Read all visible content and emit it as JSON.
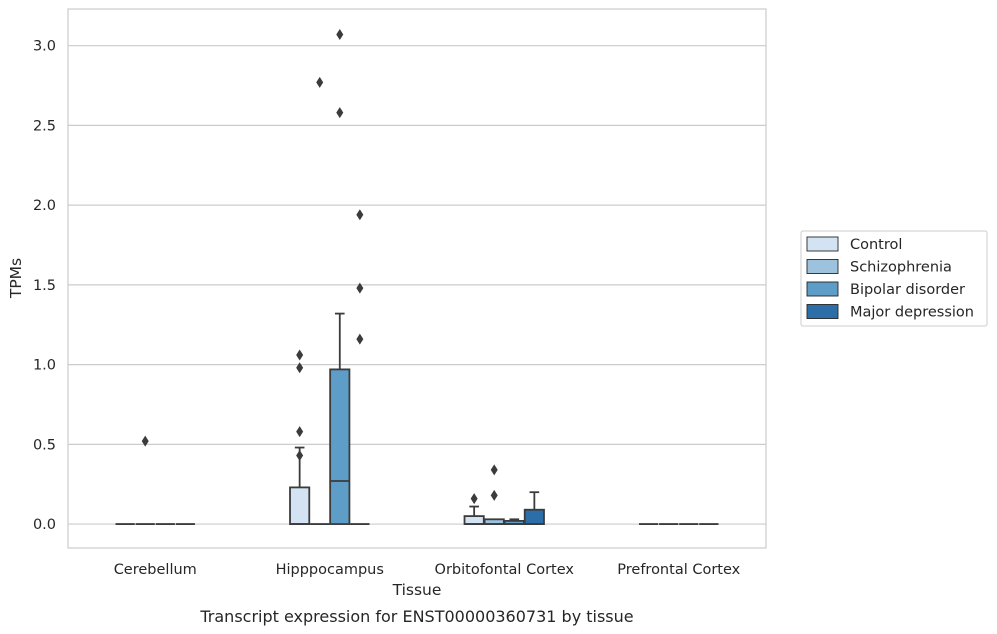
{
  "chart_data": {
    "type": "boxplot",
    "title": "Transcript expression for ENST00000360731 by tissue",
    "xlabel": "Tissue",
    "ylabel": "TPMs",
    "ylim": [
      -0.15,
      3.23
    ],
    "yticks": [
      0.0,
      0.5,
      1.0,
      1.5,
      2.0,
      2.5,
      3.0
    ],
    "ytick_labels": [
      "0.0",
      "0.5",
      "1.0",
      "1.5",
      "2.0",
      "2.5",
      "3.0"
    ],
    "grid": "horizontal",
    "legend_position": "right",
    "categories": [
      "Cerebellum",
      "Hipppocampus",
      "Orbitofontal Cortex",
      "Prefrontal Cortex"
    ],
    "series": [
      {
        "name": "Control",
        "color": "#d4e3f3",
        "boxes": [
          {
            "q1": 0,
            "median": 0,
            "q3": 0,
            "whislo": 0,
            "whishi": 0,
            "fliers": []
          },
          {
            "q1": 0,
            "median": 0,
            "q3": 0.23,
            "whislo": 0,
            "whishi": 0.48,
            "fliers": [
              0.43,
              0.58,
              0.98,
              1.06
            ]
          },
          {
            "q1": 0,
            "median": 0,
            "q3": 0.05,
            "whislo": 0,
            "whishi": 0.11,
            "fliers": [
              0.16
            ]
          },
          {
            "q1": 0,
            "median": 0,
            "q3": 0,
            "whislo": 0,
            "whishi": 0,
            "fliers": []
          }
        ]
      },
      {
        "name": "Schizophrenia",
        "color": "#9dc2dd",
        "boxes": [
          {
            "q1": 0,
            "median": 0,
            "q3": 0,
            "whislo": 0,
            "whishi": 0,
            "fliers": [
              0.52
            ]
          },
          {
            "q1": 0,
            "median": 0,
            "q3": 0,
            "whislo": 0,
            "whishi": 0,
            "fliers": [
              2.77
            ]
          },
          {
            "q1": 0,
            "median": 0,
            "q3": 0.03,
            "whislo": 0,
            "whishi": 0.03,
            "fliers": [
              0.18,
              0.34
            ]
          },
          {
            "q1": 0,
            "median": 0,
            "q3": 0,
            "whislo": 0,
            "whishi": 0,
            "fliers": []
          }
        ]
      },
      {
        "name": "Bipolar disorder",
        "color": "#5e9dc7",
        "boxes": [
          {
            "q1": 0,
            "median": 0,
            "q3": 0,
            "whislo": 0,
            "whishi": 0,
            "fliers": []
          },
          {
            "q1": 0,
            "median": 0.27,
            "q3": 0.97,
            "whislo": 0,
            "whishi": 1.32,
            "fliers": [
              2.58,
              3.07
            ]
          },
          {
            "q1": 0,
            "median": 0,
            "q3": 0.02,
            "whislo": 0,
            "whishi": 0.03,
            "fliers": []
          },
          {
            "q1": 0,
            "median": 0,
            "q3": 0,
            "whislo": 0,
            "whishi": 0,
            "fliers": []
          }
        ]
      },
      {
        "name": "Major depression",
        "color": "#2c6ea8",
        "boxes": [
          {
            "q1": 0,
            "median": 0,
            "q3": 0,
            "whislo": 0,
            "whishi": 0,
            "fliers": []
          },
          {
            "q1": 0,
            "median": 0,
            "q3": 0,
            "whislo": 0,
            "whishi": 0,
            "fliers": [
              1.16,
              1.48,
              1.94
            ]
          },
          {
            "q1": 0,
            "median": 0,
            "q3": 0.09,
            "whislo": 0,
            "whishi": 0.2,
            "fliers": []
          },
          {
            "q1": 0,
            "median": 0,
            "q3": 0,
            "whislo": 0,
            "whishi": 0,
            "fliers": []
          }
        ]
      }
    ],
    "colors": {
      "grid": "#cccccc",
      "frame": "#cccccc",
      "line": "#3b3b3b",
      "text": "#262626"
    }
  }
}
